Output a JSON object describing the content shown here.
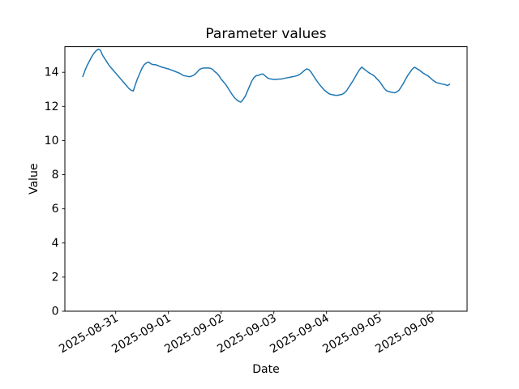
{
  "figure": {
    "background": "#ffffff",
    "text_color": "#000000",
    "spine_color": "#000000"
  },
  "chart_data": {
    "type": "line",
    "title": "Parameter values",
    "xlabel": "Date",
    "ylabel": "Value",
    "series_name": "Parameter values",
    "series_color": "#1f77b4",
    "grid": false,
    "legend_position": "none",
    "ylim": [
      0,
      15.5
    ],
    "y_ticks": [
      0,
      2,
      4,
      6,
      8,
      10,
      12,
      14
    ],
    "x_tick_labels": [
      "2025-08-31",
      "2025-09-01",
      "2025-09-02",
      "2025-09-03",
      "2025-09-04",
      "2025-09-05",
      "2025-09-06"
    ],
    "x_start": "2025-08-30 09:00",
    "x_step_hours": 1,
    "hours_before_first_tick": 15,
    "values": [
      13.75,
      14.1,
      14.4,
      14.65,
      14.9,
      15.1,
      15.25,
      15.35,
      15.3,
      15.0,
      14.8,
      14.6,
      14.4,
      14.25,
      14.1,
      13.95,
      13.8,
      13.65,
      13.5,
      13.35,
      13.2,
      13.05,
      12.95,
      12.9,
      13.3,
      13.65,
      13.95,
      14.25,
      14.45,
      14.55,
      14.6,
      14.5,
      14.45,
      14.45,
      14.4,
      14.35,
      14.3,
      14.27,
      14.23,
      14.2,
      14.15,
      14.1,
      14.05,
      14.0,
      13.95,
      13.87,
      13.8,
      13.78,
      13.75,
      13.75,
      13.8,
      13.87,
      14.0,
      14.15,
      14.22,
      14.25,
      14.25,
      14.25,
      14.24,
      14.18,
      14.05,
      13.95,
      13.8,
      13.6,
      13.45,
      13.3,
      13.1,
      12.9,
      12.7,
      12.52,
      12.4,
      12.3,
      12.25,
      12.4,
      12.6,
      12.9,
      13.2,
      13.5,
      13.7,
      13.8,
      13.82,
      13.88,
      13.9,
      13.8,
      13.68,
      13.62,
      13.6,
      13.58,
      13.58,
      13.6,
      13.6,
      13.62,
      13.65,
      13.68,
      13.7,
      13.73,
      13.75,
      13.78,
      13.82,
      13.9,
      14.0,
      14.12,
      14.2,
      14.15,
      14.0,
      13.8,
      13.6,
      13.42,
      13.25,
      13.1,
      12.95,
      12.85,
      12.75,
      12.7,
      12.68,
      12.65,
      12.65,
      12.68,
      12.7,
      12.78,
      12.9,
      13.1,
      13.3,
      13.5,
      13.72,
      13.95,
      14.15,
      14.3,
      14.2,
      14.1,
      14.0,
      13.92,
      13.85,
      13.75,
      13.6,
      13.48,
      13.3,
      13.1,
      12.95,
      12.88,
      12.85,
      12.82,
      12.8,
      12.85,
      12.95,
      13.15,
      13.35,
      13.6,
      13.82,
      14.0,
      14.18,
      14.3,
      14.22,
      14.15,
      14.05,
      13.95,
      13.87,
      13.8,
      13.7,
      13.58,
      13.48,
      13.4,
      13.36,
      13.33,
      13.3,
      13.28,
      13.22,
      13.3
    ]
  }
}
